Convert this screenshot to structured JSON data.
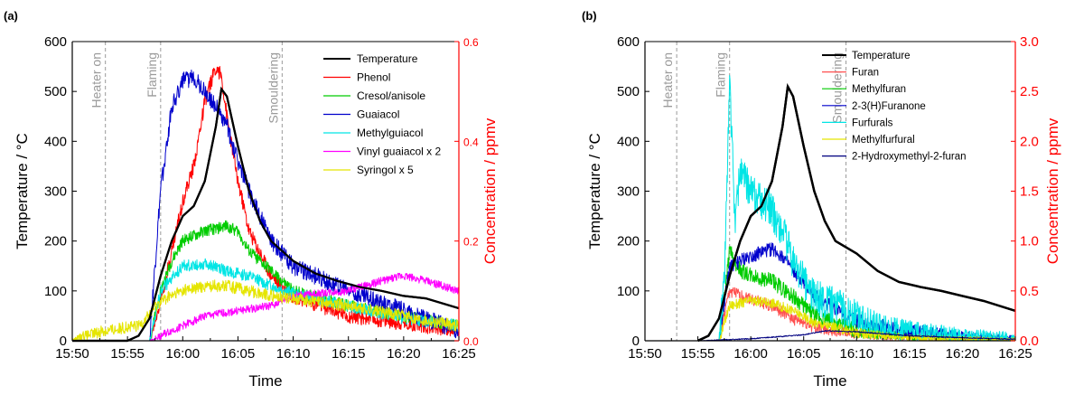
{
  "chart_data": [
    {
      "panel_label": "(a)",
      "type": "line",
      "xlabel": "Time",
      "ylabel_left": "Temperature / °C",
      "ylabel_right": "Concentration / ppmv",
      "right_axis_color": "#ff0000",
      "xlim": [
        "15:50",
        "16:25"
      ],
      "x_ticks": [
        "15:50",
        "15:55",
        "16:00",
        "16:05",
        "16:10",
        "16:15",
        "16:20",
        "16:25"
      ],
      "ylim_left": [
        0,
        600
      ],
      "y_ticks_left": [
        "0",
        "100",
        "200",
        "300",
        "400",
        "500",
        "600"
      ],
      "ylim_right": [
        0,
        0.6
      ],
      "y_ticks_right": [
        "0.0",
        "0.2",
        "0.4",
        "0.6"
      ],
      "legend_position": "top-right",
      "annotations": [
        {
          "text": "Heater on",
          "time": "15:53"
        },
        {
          "text": "Flaming",
          "time": "15:58"
        },
        {
          "text": "Smouldering",
          "time": "16:09"
        }
      ],
      "series": [
        {
          "name": "Temperature",
          "axis": "left",
          "color": "#000000",
          "noise": 0,
          "width": 2.2,
          "points": [
            [
              "15:50",
              0
            ],
            [
              "15:55",
              0
            ],
            [
              "15:56",
              10
            ],
            [
              "15:57",
              45
            ],
            [
              "15:58",
              130
            ],
            [
              "15:59",
              200
            ],
            [
              "16:00",
              250
            ],
            [
              "16:01",
              270
            ],
            [
              "16:02",
              320
            ],
            [
              "16:03",
              430
            ],
            [
              "16:03:30",
              505
            ],
            [
              "16:04",
              490
            ],
            [
              "16:05",
              390
            ],
            [
              "16:06",
              300
            ],
            [
              "16:07",
              240
            ],
            [
              "16:08",
              200
            ],
            [
              "16:10",
              160
            ],
            [
              "16:12",
              135
            ],
            [
              "16:14",
              120
            ],
            [
              "16:16",
              108
            ],
            [
              "16:18",
              100
            ],
            [
              "16:20",
              90
            ],
            [
              "16:22",
              85
            ],
            [
              "16:25",
              65
            ]
          ]
        },
        {
          "name": "Phenol",
          "axis": "right",
          "color": "#ff0000",
          "noise": 0.015,
          "width": 1,
          "points": [
            [
              "15:50",
              0
            ],
            [
              "15:57",
              0
            ],
            [
              "15:58",
              0.08
            ],
            [
              "15:59",
              0.18
            ],
            [
              "16:00",
              0.28
            ],
            [
              "16:01",
              0.35
            ],
            [
              "16:02",
              0.48
            ],
            [
              "16:03",
              0.55
            ],
            [
              "16:03:30",
              0.53
            ],
            [
              "16:04",
              0.45
            ],
            [
              "16:05",
              0.32
            ],
            [
              "16:06",
              0.22
            ],
            [
              "16:08",
              0.13
            ],
            [
              "16:10",
              0.09
            ],
            [
              "16:15",
              0.05
            ],
            [
              "16:20",
              0.035
            ],
            [
              "16:25",
              0.02
            ]
          ]
        },
        {
          "name": "Cresol/anisole",
          "axis": "right",
          "color": "#00cc00",
          "noise": 0.012,
          "width": 1,
          "points": [
            [
              "15:50",
              0
            ],
            [
              "15:57",
              0
            ],
            [
              "15:58",
              0.1
            ],
            [
              "15:59",
              0.16
            ],
            [
              "16:00",
              0.2
            ],
            [
              "16:02",
              0.22
            ],
            [
              "16:04",
              0.23
            ],
            [
              "16:05",
              0.22
            ],
            [
              "16:06",
              0.18
            ],
            [
              "16:08",
              0.14
            ],
            [
              "16:10",
              0.1
            ],
            [
              "16:15",
              0.07
            ],
            [
              "16:20",
              0.05
            ],
            [
              "16:25",
              0.03
            ]
          ]
        },
        {
          "name": "Guaiacol",
          "axis": "right",
          "color": "#0000cc",
          "noise": 0.018,
          "width": 1,
          "points": [
            [
              "15:50",
              0
            ],
            [
              "15:57",
              0
            ],
            [
              "15:58",
              0.3
            ],
            [
              "15:59",
              0.47
            ],
            [
              "16:00",
              0.52
            ],
            [
              "16:01",
              0.53
            ],
            [
              "16:02",
              0.5
            ],
            [
              "16:03",
              0.47
            ],
            [
              "16:04",
              0.43
            ],
            [
              "16:05",
              0.36
            ],
            [
              "16:06",
              0.3
            ],
            [
              "16:08",
              0.2
            ],
            [
              "16:10",
              0.15
            ],
            [
              "16:15",
              0.1
            ],
            [
              "16:20",
              0.06
            ],
            [
              "16:25",
              0.02
            ]
          ]
        },
        {
          "name": "Methylguiacol",
          "axis": "right",
          "color": "#00e5e5",
          "noise": 0.012,
          "width": 1,
          "points": [
            [
              "15:50",
              0
            ],
            [
              "15:57",
              0
            ],
            [
              "15:58",
              0.1
            ],
            [
              "16:00",
              0.15
            ],
            [
              "16:02",
              0.155
            ],
            [
              "16:04",
              0.14
            ],
            [
              "16:06",
              0.13
            ],
            [
              "16:08",
              0.11
            ],
            [
              "16:10",
              0.095
            ],
            [
              "16:15",
              0.07
            ],
            [
              "16:20",
              0.045
            ],
            [
              "16:25",
              0.03
            ]
          ]
        },
        {
          "name": "Vinyl guaiacol x 2",
          "axis": "right",
          "color": "#ff00ff",
          "noise": 0.008,
          "width": 1,
          "points": [
            [
              "15:50",
              0
            ],
            [
              "15:57",
              0
            ],
            [
              "15:58",
              0.01
            ],
            [
              "16:00",
              0.03
            ],
            [
              "16:02",
              0.05
            ],
            [
              "16:05",
              0.06
            ],
            [
              "16:08",
              0.07
            ],
            [
              "16:10",
              0.09
            ],
            [
              "16:15",
              0.1
            ],
            [
              "16:18",
              0.12
            ],
            [
              "16:20",
              0.13
            ],
            [
              "16:22",
              0.12
            ],
            [
              "16:25",
              0.1
            ]
          ]
        },
        {
          "name": "Syringol x 5",
          "axis": "right",
          "color": "#e5e500",
          "noise": 0.012,
          "width": 1,
          "points": [
            [
              "15:50",
              0
            ],
            [
              "15:51",
              0.01
            ],
            [
              "15:53",
              0.02
            ],
            [
              "15:56",
              0.03
            ],
            [
              "15:58",
              0.08
            ],
            [
              "16:00",
              0.1
            ],
            [
              "16:02",
              0.11
            ],
            [
              "16:04",
              0.11
            ],
            [
              "16:06",
              0.1
            ],
            [
              "16:08",
              0.09
            ],
            [
              "16:10",
              0.085
            ],
            [
              "16:15",
              0.07
            ],
            [
              "16:20",
              0.05
            ],
            [
              "16:25",
              0.03
            ]
          ]
        }
      ]
    },
    {
      "panel_label": "(b)",
      "type": "line",
      "xlabel": "Time",
      "ylabel_left": "Temperature / °C",
      "ylabel_right": "Concentration / ppmv",
      "right_axis_color": "#ff0000",
      "xlim": [
        "15:50",
        "16:25"
      ],
      "x_ticks": [
        "15:50",
        "15:55",
        "16:00",
        "16:05",
        "16:10",
        "16:15",
        "16:20",
        "16:25"
      ],
      "ylim_left": [
        0,
        600
      ],
      "y_ticks_left": [
        "0",
        "100",
        "200",
        "300",
        "400",
        "500",
        "600"
      ],
      "ylim_right": [
        0,
        3.0
      ],
      "y_ticks_right": [
        "0.0",
        "0.5",
        "1.0",
        "1.5",
        "2.0",
        "2.5",
        "3.0"
      ],
      "legend_position": "top-right",
      "annotations": [
        {
          "text": "Heater on",
          "time": "15:53"
        },
        {
          "text": "Flaming",
          "time": "15:58"
        },
        {
          "text": "Smouldering",
          "time": "16:09"
        }
      ],
      "series": [
        {
          "name": "Temperature",
          "axis": "left",
          "color": "#000000",
          "noise": 0,
          "width": 2.4,
          "points": [
            [
              "15:55",
              0
            ],
            [
              "15:56",
              10
            ],
            [
              "15:57",
              45
            ],
            [
              "15:58",
              130
            ],
            [
              "15:59",
              200
            ],
            [
              "16:00",
              250
            ],
            [
              "16:01",
              270
            ],
            [
              "16:02",
              320
            ],
            [
              "16:03",
              430
            ],
            [
              "16:03:30",
              510
            ],
            [
              "16:04",
              490
            ],
            [
              "16:05",
              390
            ],
            [
              "16:06",
              300
            ],
            [
              "16:07",
              240
            ],
            [
              "16:08",
              200
            ],
            [
              "16:10",
              175
            ],
            [
              "16:12",
              140
            ],
            [
              "16:14",
              118
            ],
            [
              "16:16",
              108
            ],
            [
              "16:18",
              100
            ],
            [
              "16:20",
              90
            ],
            [
              "16:22",
              80
            ],
            [
              "16:25",
              60
            ]
          ]
        },
        {
          "name": "Furan",
          "axis": "right",
          "color": "#ff5050",
          "noise": 0.06,
          "width": 1,
          "points": [
            [
              "15:57",
              0
            ],
            [
              "15:58",
              0.5
            ],
            [
              "15:59",
              0.45
            ],
            [
              "16:00",
              0.42
            ],
            [
              "16:02",
              0.35
            ],
            [
              "16:04",
              0.22
            ],
            [
              "16:06",
              0.14
            ],
            [
              "16:10",
              0.07
            ],
            [
              "16:15",
              0.03
            ],
            [
              "16:25",
              0.01
            ]
          ]
        },
        {
          "name": "Methylfuran",
          "axis": "right",
          "color": "#00cc00",
          "noise": 0.08,
          "width": 1,
          "points": [
            [
              "15:57",
              0
            ],
            [
              "15:58",
              0.9
            ],
            [
              "15:59",
              0.7
            ],
            [
              "16:00",
              0.65
            ],
            [
              "16:02",
              0.6
            ],
            [
              "16:04",
              0.45
            ],
            [
              "16:06",
              0.25
            ],
            [
              "16:10",
              0.1
            ],
            [
              "16:15",
              0.05
            ],
            [
              "16:25",
              0.01
            ]
          ]
        },
        {
          "name": "2-3(H)Furanone",
          "axis": "right",
          "color": "#0000cc",
          "noise": 0.07,
          "width": 1,
          "points": [
            [
              "15:57",
              0
            ],
            [
              "15:58",
              0.75
            ],
            [
              "16:00",
              0.85
            ],
            [
              "16:02",
              0.92
            ],
            [
              "16:03",
              0.85
            ],
            [
              "16:04",
              0.7
            ],
            [
              "16:06",
              0.45
            ],
            [
              "16:10",
              0.2
            ],
            [
              "16:15",
              0.1
            ],
            [
              "16:20",
              0.05
            ],
            [
              "16:25",
              0.02
            ]
          ]
        },
        {
          "name": "Furfurals",
          "axis": "right",
          "color": "#00e5e5",
          "noise": 0.18,
          "width": 1,
          "points": [
            [
              "15:57",
              0
            ],
            [
              "15:57:30",
              0.6
            ],
            [
              "15:58",
              2.6
            ],
            [
              "15:58:30",
              1.2
            ],
            [
              "15:59",
              1.7
            ],
            [
              "16:00",
              1.5
            ],
            [
              "16:01",
              1.4
            ],
            [
              "16:02",
              1.3
            ],
            [
              "16:03",
              1.1
            ],
            [
              "16:04",
              0.8
            ],
            [
              "16:05",
              0.6
            ],
            [
              "16:06",
              0.45
            ],
            [
              "16:08",
              0.35
            ],
            [
              "16:10",
              0.25
            ],
            [
              "16:12",
              0.15
            ],
            [
              "16:15",
              0.1
            ],
            [
              "16:20",
              0.05
            ],
            [
              "16:25",
              0.02
            ]
          ]
        },
        {
          "name": "Methylfurfural",
          "axis": "right",
          "color": "#e5e500",
          "noise": 0.05,
          "width": 1,
          "points": [
            [
              "15:57",
              0
            ],
            [
              "15:58",
              0.35
            ],
            [
              "16:00",
              0.4
            ],
            [
              "16:02",
              0.38
            ],
            [
              "16:04",
              0.3
            ],
            [
              "16:06",
              0.18
            ],
            [
              "16:10",
              0.08
            ],
            [
              "16:15",
              0.03
            ],
            [
              "16:25",
              0.01
            ]
          ]
        },
        {
          "name": "2-Hydroxymethyl-2-furan",
          "axis": "right",
          "color": "#000080",
          "noise": 0.005,
          "width": 1,
          "points": [
            [
              "15:55",
              0
            ],
            [
              "16:00",
              0.02
            ],
            [
              "16:05",
              0.06
            ],
            [
              "16:07",
              0.1
            ],
            [
              "16:10",
              0.09
            ],
            [
              "16:15",
              0.05
            ],
            [
              "16:20",
              0.03
            ],
            [
              "16:25",
              0.015
            ]
          ]
        }
      ]
    }
  ]
}
